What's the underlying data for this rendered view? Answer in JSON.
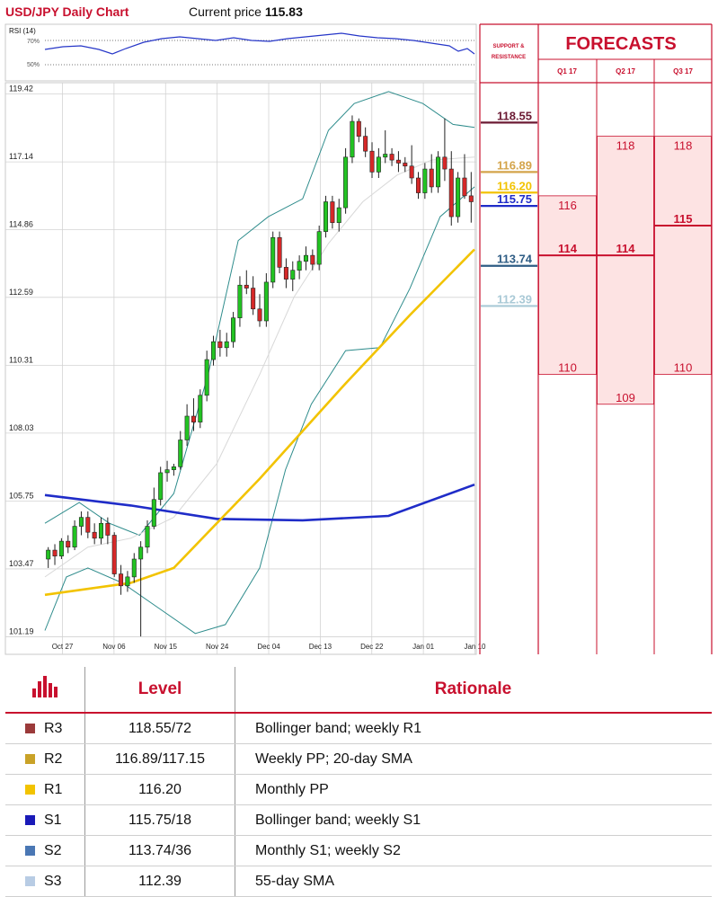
{
  "header": {
    "title": "USD/JPY Daily Chart",
    "price_label": "Current price",
    "price_value": "115.83"
  },
  "rsi": {
    "label": "RSI (14)",
    "levels": [
      "70%",
      "50%"
    ]
  },
  "sr_header": [
    "SUPPORT &",
    "RESISTANCE"
  ],
  "forecasts": {
    "title": "FORECASTS",
    "columns": [
      "Q1 17",
      "Q2 17",
      "Q3 17"
    ],
    "ranges": [
      {
        "quarter": "Q1 17",
        "high": 116,
        "mid": 114,
        "low": 110
      },
      {
        "quarter": "Q2 17",
        "high": 118,
        "mid": 114,
        "low": 109
      },
      {
        "quarter": "Q3 17",
        "high": 118,
        "mid": 115,
        "low": 110
      }
    ]
  },
  "chart_data": {
    "type": "candlestick",
    "title": "USD/JPY Daily Chart",
    "ylim": [
      100.6,
      119.8
    ],
    "y_ticks": [
      "119.42",
      "117.14",
      "114.86",
      "112.59",
      "110.31",
      "108.03",
      "105.75",
      "103.47",
      "101.19"
    ],
    "x_ticks": [
      "Oct 27",
      "Nov 06",
      "Nov 15",
      "Nov 24",
      "Dec 04",
      "Dec 13",
      "Dec 22",
      "Jan 01",
      "Jan 10"
    ],
    "candles": [
      [
        103.8,
        104.2,
        103.5,
        104.1
      ],
      [
        104.1,
        104.3,
        103.6,
        103.9
      ],
      [
        103.9,
        104.5,
        103.8,
        104.4
      ],
      [
        104.4,
        104.6,
        104.0,
        104.2
      ],
      [
        104.2,
        105.1,
        104.1,
        104.9
      ],
      [
        104.9,
        105.4,
        104.6,
        105.2
      ],
      [
        105.2,
        105.4,
        104.5,
        104.7
      ],
      [
        104.7,
        105.0,
        104.3,
        104.5
      ],
      [
        104.5,
        105.2,
        104.3,
        105.0
      ],
      [
        105.0,
        105.2,
        104.3,
        104.6
      ],
      [
        104.6,
        104.7,
        103.2,
        103.3
      ],
      [
        103.3,
        103.6,
        102.6,
        102.9
      ],
      [
        102.9,
        103.4,
        102.7,
        103.2
      ],
      [
        103.2,
        104.0,
        103.0,
        103.8
      ],
      [
        103.8,
        104.4,
        101.2,
        104.2
      ],
      [
        104.2,
        105.1,
        104.0,
        104.9
      ],
      [
        104.9,
        106.2,
        104.8,
        105.8
      ],
      [
        105.8,
        106.9,
        105.6,
        106.7
      ],
      [
        106.7,
        107.1,
        106.4,
        106.8
      ],
      [
        106.8,
        107.0,
        106.6,
        106.9
      ],
      [
        106.9,
        108.1,
        106.8,
        107.8
      ],
      [
        107.8,
        109.0,
        107.6,
        108.6
      ],
      [
        108.6,
        109.2,
        108.1,
        108.4
      ],
      [
        108.4,
        109.5,
        108.2,
        109.3
      ],
      [
        109.3,
        110.8,
        109.1,
        110.5
      ],
      [
        110.5,
        111.3,
        110.3,
        111.1
      ],
      [
        111.1,
        111.5,
        110.6,
        110.9
      ],
      [
        110.9,
        111.4,
        110.6,
        111.1
      ],
      [
        111.1,
        112.1,
        110.9,
        111.9
      ],
      [
        111.9,
        113.3,
        111.6,
        113.0
      ],
      [
        113.0,
        113.5,
        112.7,
        112.9
      ],
      [
        112.9,
        113.3,
        112.0,
        112.2
      ],
      [
        112.2,
        112.7,
        111.6,
        111.8
      ],
      [
        111.8,
        113.4,
        111.6,
        113.1
      ],
      [
        113.1,
        114.8,
        112.9,
        114.6
      ],
      [
        114.6,
        114.8,
        113.4,
        113.6
      ],
      [
        113.6,
        113.9,
        112.9,
        113.2
      ],
      [
        113.2,
        113.8,
        112.8,
        113.5
      ],
      [
        113.5,
        114.0,
        113.2,
        113.8
      ],
      [
        113.8,
        114.3,
        113.5,
        114.0
      ],
      [
        114.0,
        114.2,
        113.5,
        113.7
      ],
      [
        113.7,
        115.0,
        113.5,
        114.8
      ],
      [
        114.8,
        116.0,
        114.6,
        115.8
      ],
      [
        115.8,
        116.0,
        114.9,
        115.1
      ],
      [
        115.1,
        115.9,
        114.8,
        115.6
      ],
      [
        115.6,
        117.6,
        115.4,
        117.3
      ],
      [
        117.3,
        118.7,
        117.1,
        118.5
      ],
      [
        118.5,
        118.6,
        117.8,
        118.0
      ],
      [
        118.0,
        118.3,
        117.3,
        117.5
      ],
      [
        117.5,
        117.8,
        116.6,
        116.8
      ],
      [
        116.8,
        117.6,
        116.6,
        117.3
      ],
      [
        117.3,
        118.2,
        117.1,
        117.4
      ],
      [
        117.4,
        117.6,
        117.0,
        117.2
      ],
      [
        117.2,
        117.5,
        116.8,
        117.1
      ],
      [
        117.1,
        117.3,
        116.8,
        117.0
      ],
      [
        117.0,
        117.7,
        116.4,
        116.6
      ],
      [
        116.6,
        116.8,
        115.9,
        116.1
      ],
      [
        116.1,
        117.1,
        115.9,
        116.9
      ],
      [
        116.9,
        117.4,
        116.1,
        116.3
      ],
      [
        116.3,
        117.5,
        116.1,
        117.3
      ],
      [
        117.3,
        118.6,
        116.5,
        116.9
      ],
      [
        116.9,
        117.5,
        115.0,
        115.3
      ],
      [
        115.3,
        116.8,
        115.1,
        116.6
      ],
      [
        116.6,
        117.4,
        115.9,
        116.0
      ],
      [
        116.0,
        116.8,
        115.1,
        115.8
      ]
    ],
    "series": [
      {
        "name": "200-day SMA",
        "values": [
          [
            0,
            105.95
          ],
          [
            0.2,
            105.6
          ],
          [
            0.4,
            105.15
          ],
          [
            0.6,
            105.1
          ],
          [
            0.8,
            105.25
          ],
          [
            1.0,
            106.3
          ]
        ]
      },
      {
        "name": "55-day SMA",
        "values": [
          [
            0,
            102.6
          ],
          [
            0.2,
            103.0
          ],
          [
            0.3,
            103.5
          ],
          [
            0.5,
            106.5
          ],
          [
            0.7,
            109.7
          ],
          [
            0.85,
            112.0
          ],
          [
            1.0,
            114.2
          ]
        ]
      }
    ],
    "support_resistance": [
      {
        "value": "118.55",
        "color": "#6b1a33"
      },
      {
        "value": "116.89",
        "color": "#d4a44a"
      },
      {
        "value": "116.20",
        "color": "#f2c300"
      },
      {
        "value": "115.75",
        "color": "#1f2cc8"
      },
      {
        "value": "113.74",
        "color": "#2e5c84"
      },
      {
        "value": "112.39",
        "color": "#a9c9d6"
      }
    ]
  },
  "levels_table": {
    "headers": [
      "Level",
      "Rationale"
    ],
    "rows": [
      {
        "name": "R3",
        "color": "#9b3a3a",
        "level": "118.55/72",
        "rationale": "Bollinger band; weekly R1"
      },
      {
        "name": "R2",
        "color": "#c9a227",
        "level": "116.89/117.15",
        "rationale": "Weekly PP; 20-day SMA"
      },
      {
        "name": "R1",
        "color": "#f2c300",
        "level": "116.20",
        "rationale": "Monthly PP"
      },
      {
        "name": "S1",
        "color": "#1a1ab8",
        "level": "115.75/18",
        "rationale": "Bollinger band; weekly S1"
      },
      {
        "name": "S2",
        "color": "#4a77b4",
        "level": "113.74/36",
        "rationale": "Monthly S1; weekly S2"
      },
      {
        "name": "S3",
        "color": "#b8cce4",
        "level": "112.39",
        "rationale": "55-day SMA"
      }
    ]
  }
}
